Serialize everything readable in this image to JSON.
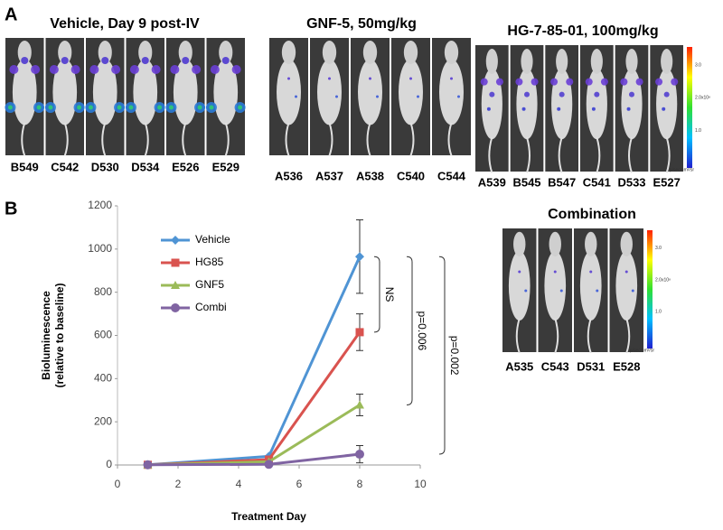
{
  "panel_labels": [
    "A",
    "B"
  ],
  "groups": [
    {
      "title": "Vehicle, Day 9 post-IV",
      "mice": [
        "B549",
        "C542",
        "D530",
        "D534",
        "E526",
        "E529"
      ]
    },
    {
      "title": "GNF-5, 50mg/kg",
      "mice": [
        "A536",
        "A537",
        "A538",
        "C540",
        "C544"
      ]
    },
    {
      "title": "HG-7-85-01, 100mg/kg",
      "mice": [
        "A539",
        "B545",
        "B547",
        "C541",
        "D533",
        "E527"
      ]
    },
    {
      "title": "Combination",
      "mice": [
        "A535",
        "C543",
        "D531",
        "E528"
      ]
    }
  ],
  "colorbar": {
    "ticks": [
      "3.0",
      "2.0",
      "1.0"
    ],
    "scale": "x10⁸",
    "unit": "p/sec/cm²/sr"
  },
  "chart_data": {
    "type": "line",
    "xlabel": "Treatment Day",
    "ylabel": [
      "Bioluminescence",
      "(relative to baseline)"
    ],
    "x": [
      1,
      5,
      8
    ],
    "series": [
      {
        "name": "Vehicle",
        "color": "#4f94d4",
        "marker": "diamond",
        "values": [
          1,
          40,
          965
        ],
        "errors": [
          null,
          null,
          170
        ]
      },
      {
        "name": "HG85",
        "color": "#d9534f",
        "marker": "square",
        "values": [
          1,
          25,
          615
        ],
        "errors": [
          null,
          null,
          85
        ]
      },
      {
        "name": "GNF5",
        "color": "#9bbb59",
        "marker": "triangle",
        "values": [
          1,
          15,
          278
        ],
        "errors": [
          null,
          null,
          50
        ]
      },
      {
        "name": "Combi",
        "color": "#8064a2",
        "marker": "circle",
        "values": [
          1,
          3,
          50
        ],
        "errors": [
          null,
          null,
          40
        ]
      }
    ],
    "annotations": [
      "NS",
      "p=0.006",
      "p=0.002"
    ],
    "xlim": [
      0,
      10
    ],
    "xticks": [
      0,
      2,
      4,
      6,
      8,
      10
    ],
    "ylim": [
      0,
      1200
    ],
    "yticks": [
      0,
      200,
      400,
      600,
      800,
      1000,
      1200
    ],
    "grid": false
  }
}
